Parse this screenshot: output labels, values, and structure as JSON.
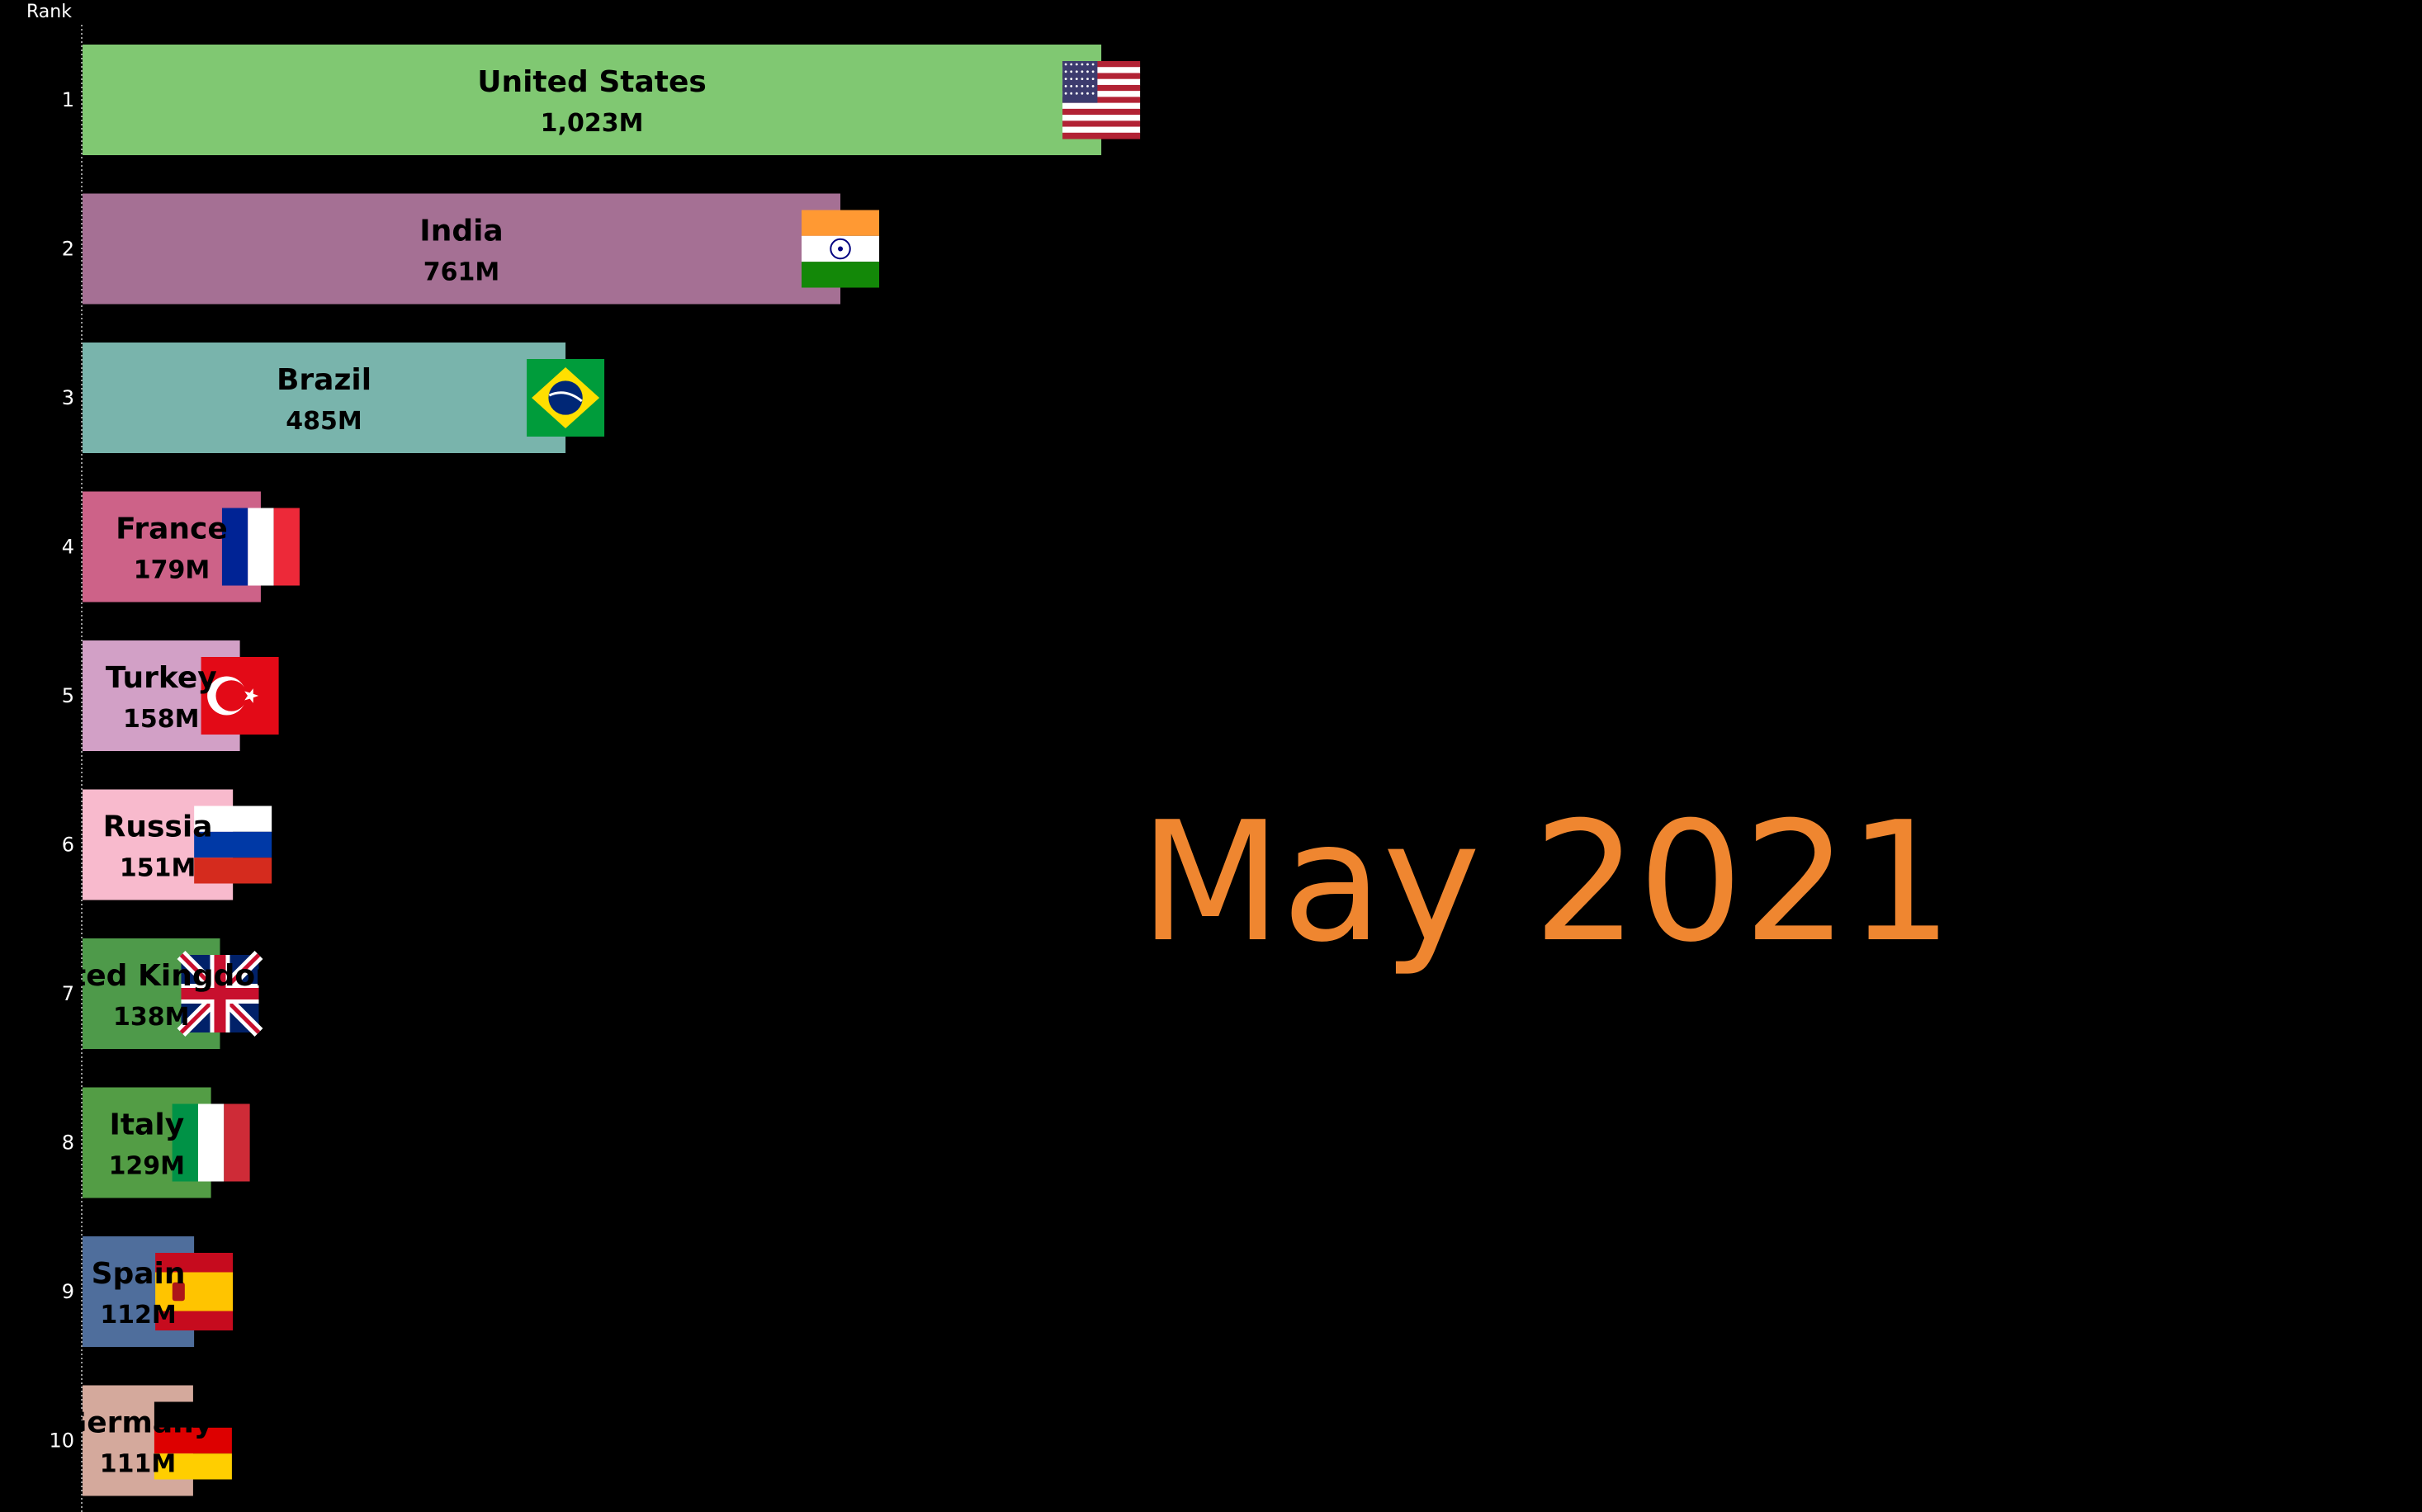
{
  "header": {
    "rank_label": "Rank"
  },
  "period": {
    "label": "May 2021",
    "color": "#ef8630"
  },
  "chart_data": {
    "type": "bar",
    "orientation": "horizontal",
    "title": "",
    "xlabel": "",
    "ylabel": "Rank",
    "unit_suffix": "M",
    "xlim": [
      0,
      1100
    ],
    "grid": false,
    "legend": "none",
    "categories": [
      "United States",
      "India",
      "Brazil",
      "France",
      "Turkey",
      "Russia",
      "United Kingdom",
      "Italy",
      "Spain",
      "Germany"
    ],
    "ranks": [
      1,
      2,
      3,
      4,
      5,
      6,
      7,
      8,
      9,
      10
    ],
    "values": [
      1023,
      761,
      485,
      179,
      158,
      151,
      138,
      129,
      112,
      111
    ],
    "value_labels": [
      "1,023M",
      "761M",
      "485M",
      "179M",
      "158M",
      "151M",
      "138M",
      "129M",
      "112M",
      "111M"
    ],
    "colors": [
      "#80c872",
      "#a57094",
      "#79b4ac",
      "#cd6288",
      "#d2a0c6",
      "#f8bacd",
      "#4e9a4a",
      "#539d45",
      "#4f6e9c",
      "#d4a99c"
    ],
    "flags": [
      "us-flag-icon",
      "india-flag-icon",
      "brazil-flag-icon",
      "france-flag-icon",
      "turkey-flag-icon",
      "russia-flag-icon",
      "uk-flag-icon",
      "italy-flag-icon",
      "spain-flag-icon",
      "germany-flag-icon"
    ]
  }
}
